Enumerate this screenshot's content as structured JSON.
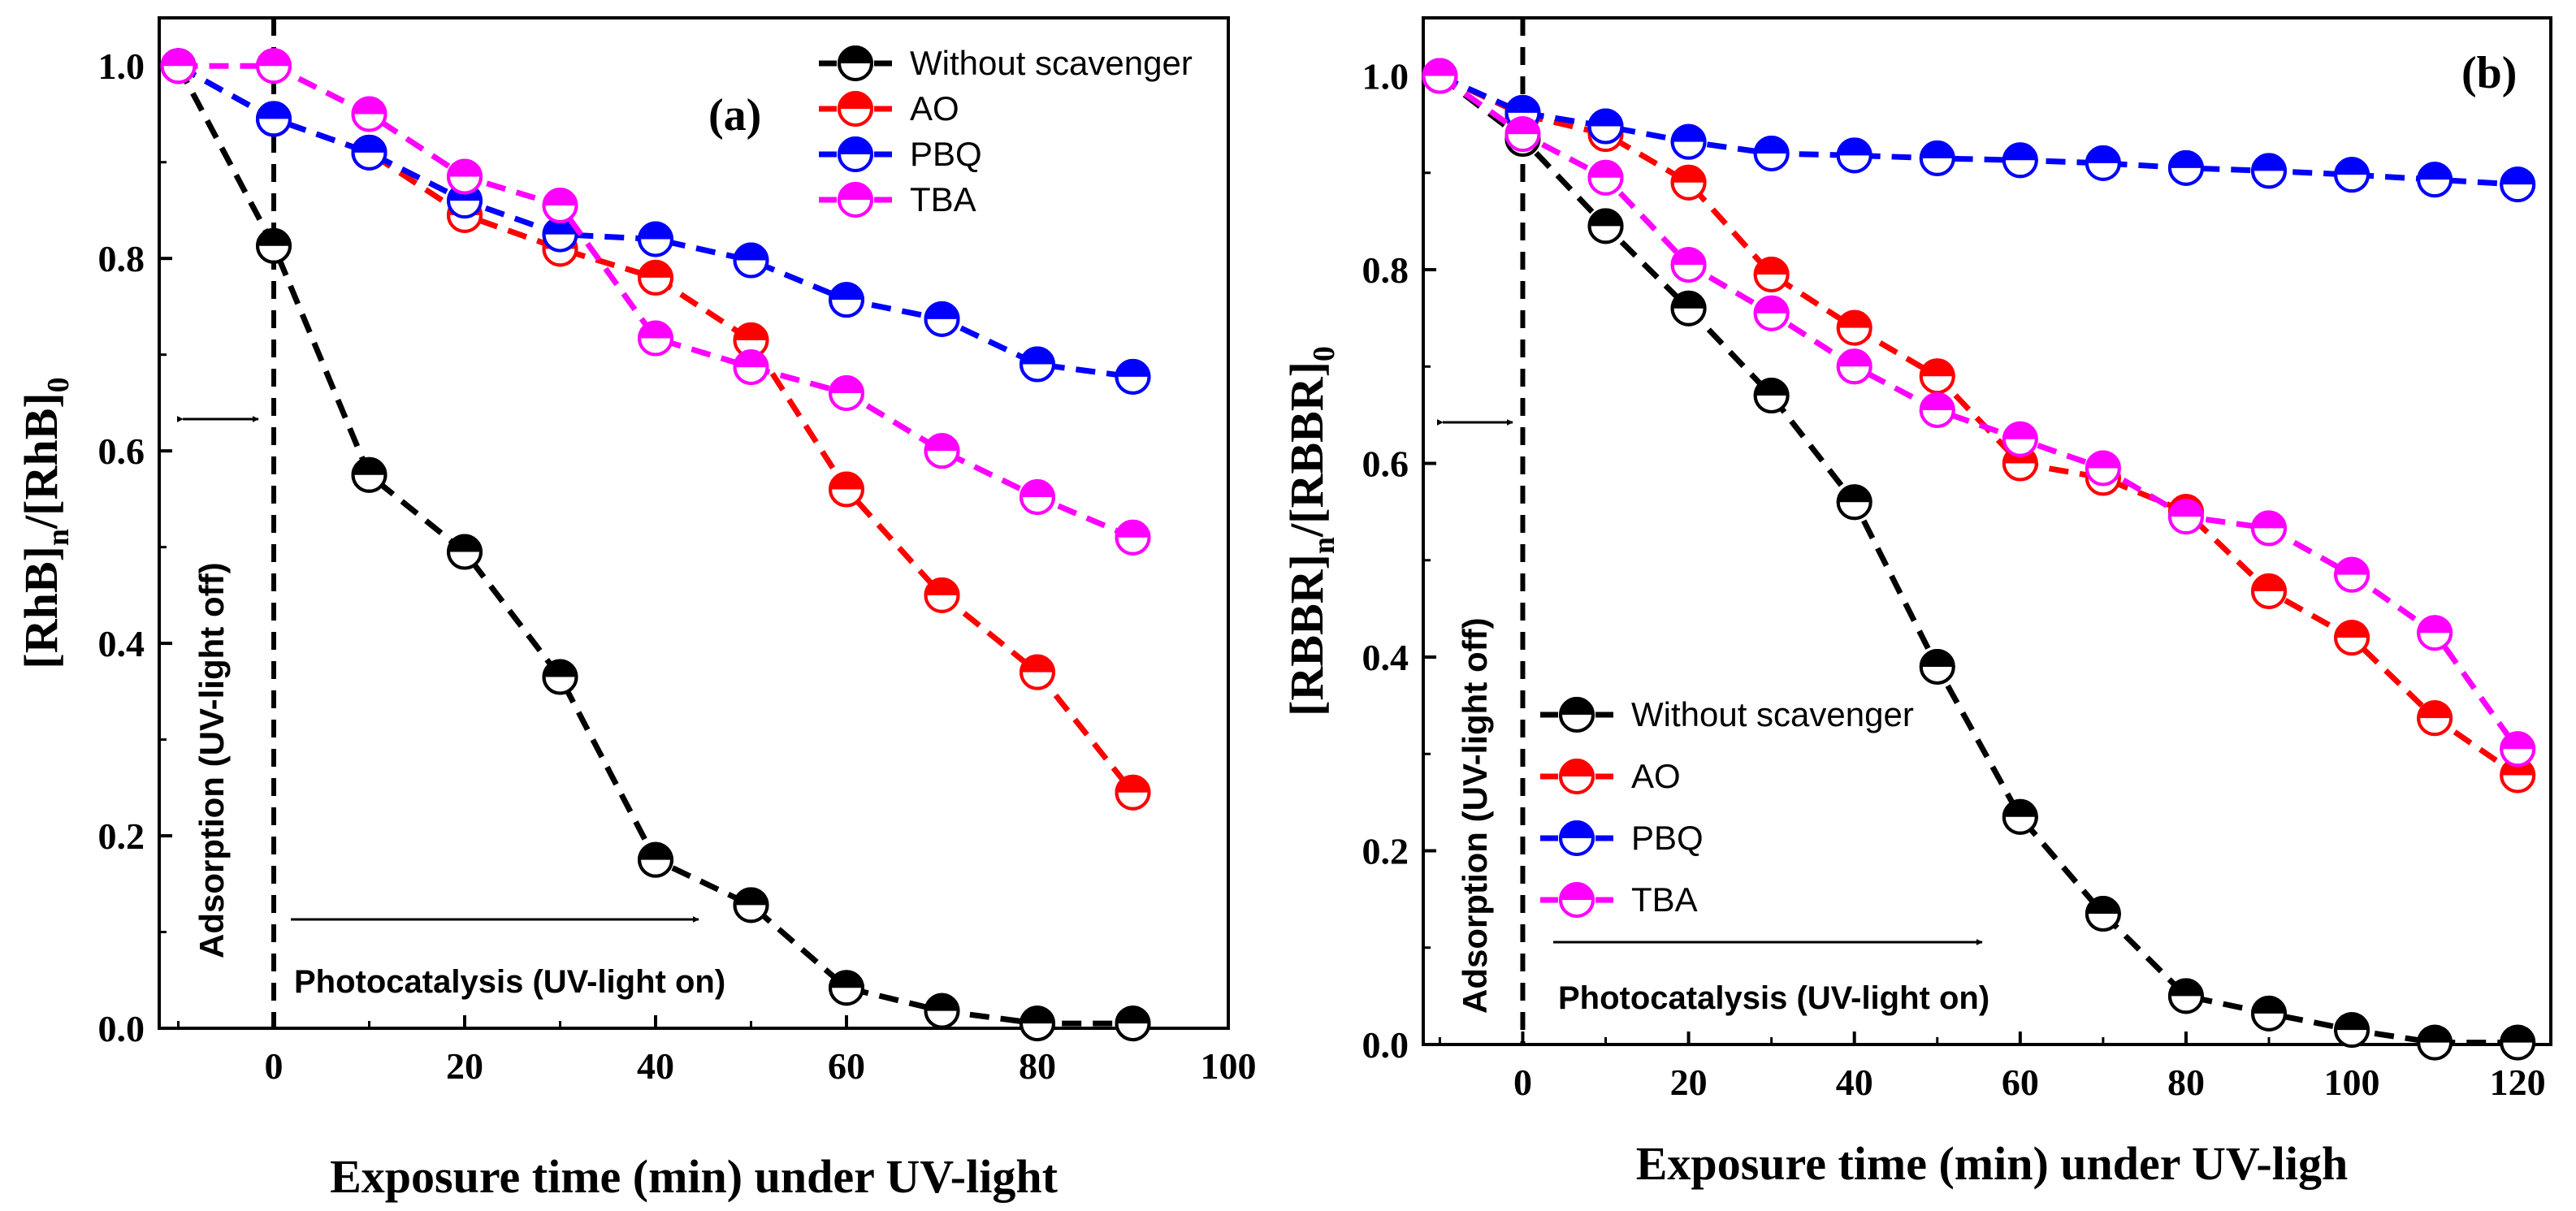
{
  "chart_data": [
    {
      "type": "line",
      "panel_label": "(a)",
      "xlabel": "Exposure time (min) under UV-light",
      "ylabel": "[RhB]n/[RhB]0",
      "ylabel_parts": {
        "a": "[RhB]",
        "a_sub": "n",
        "b": "/[RhB]",
        "b_sub": "0"
      },
      "xlim": [
        -12,
        100
      ],
      "ylim": [
        0,
        1.05
      ],
      "xticks": [
        0,
        20,
        40,
        60,
        80,
        100
      ],
      "xtick_labels": [
        "0",
        "20",
        "40",
        "60",
        "80",
        "100"
      ],
      "yticks": [
        0.0,
        0.2,
        0.4,
        0.6,
        0.8,
        1.0
      ],
      "ytick_labels": [
        "0.0",
        "0.2",
        "0.4",
        "0.6",
        "0.8",
        "1.0"
      ],
      "x": [
        -10,
        0,
        10,
        20,
        30,
        40,
        50,
        60,
        70,
        80,
        90
      ],
      "series": [
        {
          "name": "Without scavenger",
          "color": "#000000",
          "values": [
            1.0,
            0.813,
            0.575,
            0.495,
            0.365,
            0.175,
            0.128,
            0.042,
            0.018,
            0.005,
            0.005
          ]
        },
        {
          "name": "AO",
          "color": "#ff0000",
          "values": [
            1.0,
            0.945,
            0.91,
            0.845,
            0.81,
            0.78,
            0.715,
            0.56,
            0.45,
            0.37,
            0.245
          ]
        },
        {
          "name": "PBQ",
          "color": "#0000ff",
          "values": [
            1.0,
            0.945,
            0.91,
            0.86,
            0.825,
            0.82,
            0.798,
            0.757,
            0.737,
            0.69,
            0.677
          ]
        },
        {
          "name": "TBA",
          "color": "#ff00ff",
          "values": [
            1.0,
            1.0,
            0.95,
            0.885,
            0.855,
            0.717,
            0.687,
            0.66,
            0.6,
            0.552,
            0.51
          ]
        }
      ],
      "legend_position": "top-right",
      "vline_x": 0,
      "annotations": {
        "adsorption": "Adsorption (UV-light off)",
        "photocatalysis": "Photocatalysis (UV-light on)"
      }
    },
    {
      "type": "line",
      "panel_label": "(b)",
      "xlabel": "Exposure time (min) under UV-ligh",
      "ylabel": "[RBBR]n/[RBBR]0",
      "ylabel_parts": {
        "a": "[RBBR]",
        "a_sub": "n",
        "b": "/[RBBR]",
        "b_sub": "0"
      },
      "xlim": [
        -12,
        124
      ],
      "ylim": [
        0,
        1.06
      ],
      "xticks": [
        0,
        20,
        40,
        60,
        80,
        100,
        120
      ],
      "xtick_labels": [
        "0",
        "20",
        "40",
        "60",
        "80",
        "100",
        "120"
      ],
      "yticks": [
        0.0,
        0.2,
        0.4,
        0.6,
        0.8,
        1.0
      ],
      "ytick_labels": [
        "0.0",
        "0.2",
        "0.4",
        "0.6",
        "0.8",
        "1.0"
      ],
      "x": [
        -10,
        0,
        10,
        20,
        30,
        40,
        50,
        60,
        70,
        80,
        90,
        100,
        110,
        120
      ],
      "series": [
        {
          "name": "Without scavenger",
          "color": "#000000",
          "values": [
            1.0,
            0.935,
            0.845,
            0.76,
            0.67,
            0.56,
            0.39,
            0.235,
            0.135,
            0.05,
            0.032,
            0.015,
            0.002,
            0.002
          ]
        },
        {
          "name": "AO",
          "color": "#ff0000",
          "values": [
            1.0,
            0.96,
            0.94,
            0.89,
            0.795,
            0.74,
            0.69,
            0.6,
            0.585,
            0.55,
            0.468,
            0.42,
            0.337,
            0.278
          ]
        },
        {
          "name": "PBQ",
          "color": "#0000ff",
          "values": [
            1.0,
            0.962,
            0.948,
            0.932,
            0.92,
            0.918,
            0.915,
            0.913,
            0.91,
            0.905,
            0.902,
            0.898,
            0.893,
            0.888
          ]
        },
        {
          "name": "TBA",
          "color": "#ff00ff",
          "values": [
            1.0,
            0.94,
            0.895,
            0.805,
            0.755,
            0.7,
            0.655,
            0.625,
            0.595,
            0.545,
            0.533,
            0.485,
            0.425,
            0.305
          ]
        }
      ],
      "legend_position": "bottom-left",
      "vline_x": 0,
      "annotations": {
        "adsorption": "Adsorption (UV-light off)",
        "photocatalysis": "Photocatalysis (UV-light on)"
      }
    }
  ]
}
